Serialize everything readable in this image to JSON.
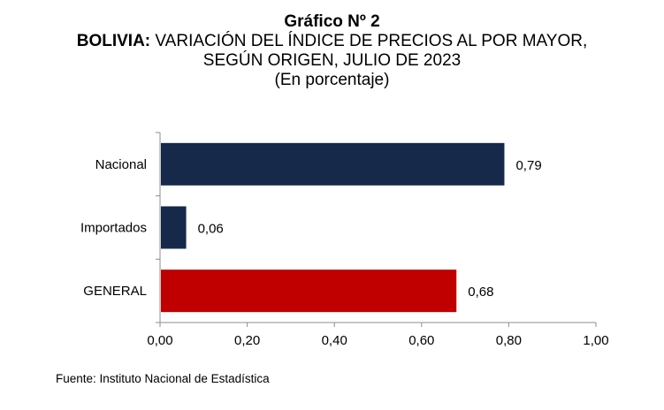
{
  "header": {
    "chart_number": "Gráfico Nº 2",
    "title_prefix": "BOLIVIA:",
    "title_rest": "VARIACIÓN DEL ÍNDICE DE PRECIOS AL POR MAYOR,",
    "title_line2": "SEGÚN ORIGEN, JULIO DE 2023",
    "unit": "(En porcentaje)"
  },
  "chart_data": {
    "type": "bar",
    "orientation": "horizontal",
    "categories": [
      "Nacional",
      "Importados",
      "GENERAL"
    ],
    "values": [
      0.79,
      0.06,
      0.68
    ],
    "value_labels": [
      "0,79",
      "0,06",
      "0,68"
    ],
    "bar_colors": [
      "#17294a",
      "#17294a",
      "#c00000"
    ],
    "xlim": [
      0,
      1
    ],
    "x_ticks": [
      0,
      0.2,
      0.4,
      0.6,
      0.8,
      1.0
    ],
    "x_tick_labels": [
      "0,00",
      "0,20",
      "0,40",
      "0,60",
      "0,80",
      "1,00"
    ],
    "grid": false
  },
  "footer": {
    "source": "Fuente: Instituto Nacional de Estadística"
  }
}
